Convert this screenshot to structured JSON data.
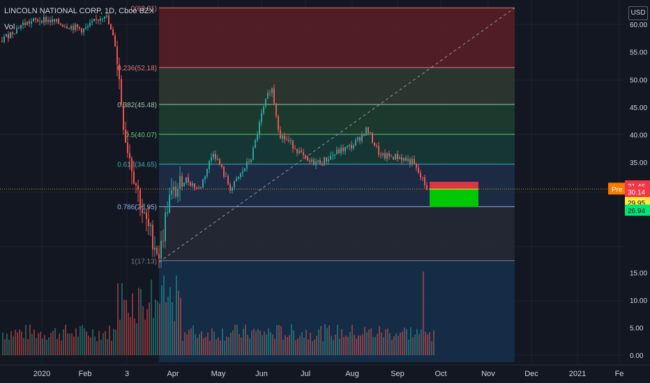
{
  "header": {
    "symbol_line": "LINCOLN NATIONAL CORP, 1D, Cboe BZX",
    "volume_label": "Vol",
    "currency": "USD"
  },
  "colors": {
    "background": "#131722",
    "up": "#26a69a",
    "down": "#ef5350",
    "text": "#d1d4dc",
    "grid": "#1e222d",
    "crosshair_price_tag": "#f57c00",
    "stop_tag": "#f23645",
    "entry_tag": "#ffeb3b",
    "target_tag": "#00e676"
  },
  "chart_data": {
    "type": "candlestick",
    "title": "LINCOLN NATIONAL CORP, 1D, Cboe BZX",
    "y_axis": {
      "range": [
        0,
        63.5
      ],
      "ticks": [
        "60.00",
        "55.00",
        "50.00",
        "45.00",
        "40.00",
        "35.00",
        "15.00",
        "10.00",
        "5.00",
        "0.00"
      ]
    },
    "x_axis": {
      "ticks": [
        "2020",
        "Feb",
        "3",
        "Apr",
        "May",
        "Jun",
        "Jul",
        "Aug",
        "Sep",
        "Oct",
        "Nov",
        "Dec",
        "2021",
        "Fe"
      ]
    },
    "fibonacci": {
      "levels": [
        {
          "label": "0(63.01)",
          "ratio": 0,
          "price": 63.01
        },
        {
          "label": "0.236(52.18)",
          "ratio": 0.236,
          "price": 52.18
        },
        {
          "label": "0.382(45.48)",
          "ratio": 0.382,
          "price": 45.48
        },
        {
          "label": "0.5(40.07)",
          "ratio": 0.5,
          "price": 40.07
        },
        {
          "label": "0.618(34.65)",
          "ratio": 0.618,
          "price": 34.65
        },
        {
          "label": "0.786(26.95)",
          "ratio": 0.786,
          "price": 26.95
        },
        {
          "label": "1(17.13)",
          "ratio": 1,
          "price": 17.13
        }
      ],
      "zone_colors": [
        "#5c1f25",
        "#2e3b30",
        "#1f4030",
        "#183c3a",
        "#1e2e4a",
        "#262a36",
        "#15304c"
      ],
      "line_colors": [
        "#e0757b",
        "#e0757b",
        "#9fc5a8",
        "#5fc36f",
        "#32b0b0",
        "#8fb8ef",
        "#787b86"
      ]
    },
    "position": {
      "stop": 31.46,
      "entry": 30.14,
      "target": 26.94
    },
    "price_tags": [
      {
        "label": "Pre",
        "value": "30.15"
      },
      {
        "value": "31.46"
      },
      {
        "value": "30.14"
      },
      {
        "value": "29.95"
      },
      {
        "value": "26.94"
      }
    ],
    "candles": [
      {
        "month": "2019-12",
        "o": 57,
        "h": 58,
        "l": 56,
        "c": 57.5
      },
      {
        "month": "2020-01",
        "o": 59,
        "h": 62,
        "l": 57,
        "c": 60
      },
      {
        "month": "2020-02",
        "o": 61,
        "h": 63,
        "l": 55,
        "c": 57
      },
      {
        "month": "2020-03",
        "o": 56,
        "h": 57,
        "l": 17,
        "c": 25
      },
      {
        "month": "2020-04",
        "o": 25,
        "h": 36,
        "l": 23,
        "c": 32
      },
      {
        "month": "2020-05",
        "o": 32,
        "h": 37,
        "l": 27,
        "c": 35
      },
      {
        "month": "2020-06",
        "o": 38,
        "h": 50,
        "l": 35,
        "c": 37
      },
      {
        "month": "2020-07",
        "o": 37,
        "h": 38,
        "l": 33,
        "c": 37
      },
      {
        "month": "2020-08",
        "o": 37,
        "h": 41,
        "l": 36,
        "c": 37
      },
      {
        "month": "2020-09",
        "o": 37,
        "h": 38,
        "l": 30,
        "c": 30.15
      }
    ]
  }
}
